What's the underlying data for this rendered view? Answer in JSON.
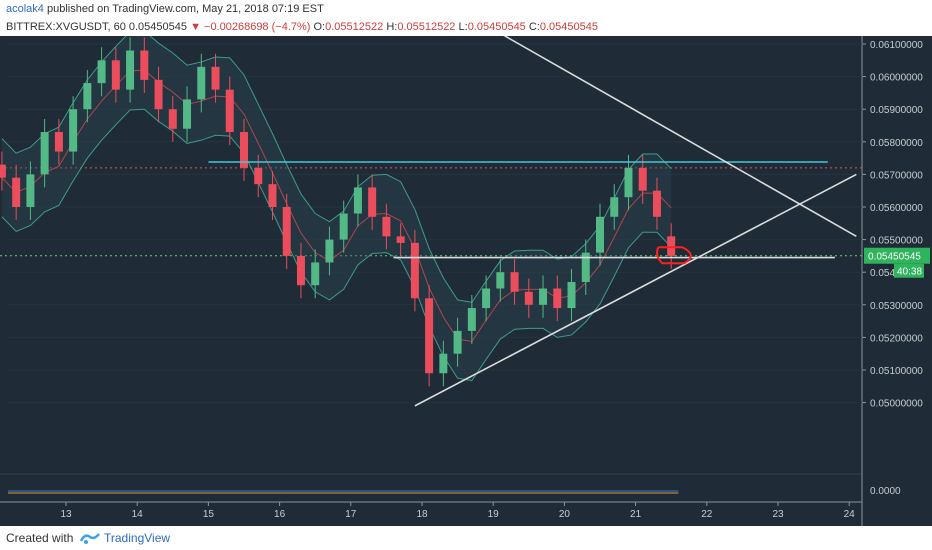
{
  "header": {
    "user": "acolak4",
    "published": "published on TradingView.com, May 21, 2018 07:19 EST",
    "symbol": "BITTREX:XVGUSDT, 60",
    "last": "0.05450545",
    "change": "−0.00268698 (−4.7%)",
    "open_label": "O:",
    "open": "0.05512522",
    "high_label": "H:",
    "high": "0.05512522",
    "low_label": "L:",
    "low": "0.05450545",
    "close_label": "C:",
    "close": "0.05450545"
  },
  "footer": {
    "created_with": "Created with",
    "brand": "TradingView"
  },
  "colors": {
    "background": "#1f2b36",
    "up": "#53b987",
    "down": "#eb4d5c",
    "resistance": "#44c6d8",
    "trendline": "#dcdcdc",
    "annotation": "#ff1f1f"
  },
  "chart_data": {
    "type": "candlestick",
    "ylim": [
      0.0492,
      0.0613
    ],
    "y_ticks": [
      "0.06100000",
      "0.06000000",
      "0.05900000",
      "0.05800000",
      "0.05700000",
      "0.05600000",
      "0.05500000",
      "0.05400000",
      "0.05300000",
      "0.05200000",
      "0.05100000",
      "0.05000000"
    ],
    "x_ticks": [
      "13",
      "14",
      "15",
      "16",
      "17",
      "18",
      "19",
      "20",
      "21",
      "22",
      "23",
      "24"
    ],
    "price_label": "0.05450545",
    "countdown_label": "40:38",
    "indicator_tick": "0.0000",
    "candles": [
      [
        12.1,
        0.0573,
        0.0569
      ],
      [
        12.3,
        0.0569,
        0.056
      ],
      [
        12.5,
        0.056,
        0.057
      ],
      [
        12.7,
        0.057,
        0.0583
      ],
      [
        12.9,
        0.0583,
        0.0577
      ],
      [
        13.1,
        0.0577,
        0.059
      ],
      [
        13.3,
        0.059,
        0.0598
      ],
      [
        13.5,
        0.0598,
        0.0605
      ],
      [
        13.7,
        0.0605,
        0.0596
      ],
      [
        13.9,
        0.0596,
        0.0608
      ],
      [
        14.1,
        0.0608,
        0.0599
      ],
      [
        14.3,
        0.0599,
        0.059
      ],
      [
        14.5,
        0.059,
        0.0584
      ],
      [
        14.7,
        0.0584,
        0.0593
      ],
      [
        14.9,
        0.0593,
        0.0603
      ],
      [
        15.1,
        0.0603,
        0.0596
      ],
      [
        15.3,
        0.0596,
        0.0583
      ],
      [
        15.5,
        0.0583,
        0.0572
      ],
      [
        15.7,
        0.0572,
        0.0567
      ],
      [
        15.9,
        0.0567,
        0.056
      ],
      [
        16.1,
        0.056,
        0.0545
      ],
      [
        16.3,
        0.0545,
        0.0536
      ],
      [
        16.5,
        0.0536,
        0.0543
      ],
      [
        16.7,
        0.0543,
        0.055
      ],
      [
        16.9,
        0.055,
        0.0558
      ],
      [
        17.1,
        0.0558,
        0.0566
      ],
      [
        17.3,
        0.0566,
        0.0557
      ],
      [
        17.5,
        0.0557,
        0.0551
      ],
      [
        17.7,
        0.0551,
        0.0549
      ],
      [
        17.9,
        0.0549,
        0.0532
      ],
      [
        18.1,
        0.0532,
        0.0509
      ],
      [
        18.3,
        0.0509,
        0.0515
      ],
      [
        18.5,
        0.0515,
        0.0522
      ],
      [
        18.7,
        0.0522,
        0.0529
      ],
      [
        18.9,
        0.0529,
        0.0535
      ],
      [
        19.1,
        0.0535,
        0.054
      ],
      [
        19.3,
        0.054,
        0.0534
      ],
      [
        19.5,
        0.0534,
        0.053
      ],
      [
        19.7,
        0.053,
        0.0535
      ],
      [
        19.9,
        0.0535,
        0.0529
      ],
      [
        20.1,
        0.0529,
        0.0537
      ],
      [
        20.3,
        0.0537,
        0.0546
      ],
      [
        20.5,
        0.0546,
        0.0557
      ],
      [
        20.7,
        0.0557,
        0.0563
      ],
      [
        20.9,
        0.0563,
        0.0572
      ],
      [
        21.1,
        0.0572,
        0.0565
      ],
      [
        21.3,
        0.0565,
        0.0557
      ],
      [
        21.5,
        0.0551,
        0.0545
      ]
    ],
    "resistance_line": {
      "x": [
        15.0,
        23.7
      ],
      "y": 0.05738
    },
    "support_line": {
      "x": [
        17.6,
        23.8
      ],
      "y": 0.05445
    },
    "upper_trendline": {
      "x": [
        18.8,
        24.1
      ],
      "y": [
        0.0617,
        0.0551
      ]
    },
    "lower_trendline": {
      "x": [
        17.9,
        24.1
      ],
      "y": [
        0.0499,
        0.057
      ]
    },
    "dotted_levels": [
      0.0572,
      0.05450545
    ]
  }
}
